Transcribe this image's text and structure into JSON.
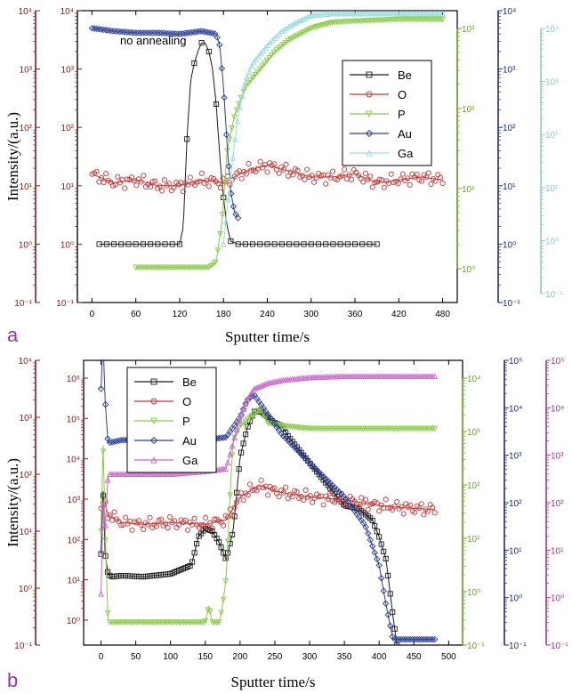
{
  "colors": {
    "Be": "#1a1a1a",
    "O": "#cc3333",
    "P": "#88cc44",
    "Au": "#2b3f99",
    "Ga": "#99dddd",
    "Ga_b": "#cc66cc",
    "axis_red": "#8b1a1a",
    "axis_green": "#66aa22",
    "axis_navy": "#1b2a7a",
    "axis_cyan": "#88cccc",
    "axis_magenta": "#aa3388",
    "panel_letter": "#9933aa"
  },
  "chart_data": [
    {
      "type": "line",
      "panel": "a",
      "annotation": "no annealing",
      "xlabel": "Sputter time/s",
      "ylabel": "Intensity/(a.u.)",
      "xlim": [
        -20,
        500
      ],
      "xticks": [
        "0",
        "60",
        "120",
        "180",
        "240",
        "300",
        "360",
        "420",
        "480"
      ],
      "legend": [
        "Be",
        "O",
        "P",
        "Au",
        "Ga"
      ],
      "legend_position": "upper-right",
      "axes": [
        {
          "side": "left-outer",
          "color_key": "axis_red",
          "scale": "log",
          "ticks": [
            "10⁻¹",
            "10⁰",
            "10¹",
            "10²",
            "10³",
            "10⁴"
          ]
        },
        {
          "side": "left-inner",
          "color_key": "axis_red",
          "scale": "log",
          "ticks": [
            "10⁻¹",
            "10⁰",
            "10¹",
            "10²",
            "10³",
            "10⁴"
          ]
        },
        {
          "side": "right-1",
          "color_key": "axis_green",
          "scale": "log",
          "ticks": [
            "10⁰",
            "10¹",
            "10²",
            "10³"
          ]
        },
        {
          "side": "right-2",
          "color_key": "axis_navy",
          "scale": "log",
          "ticks": [
            "10⁻¹",
            "10⁰",
            "10¹",
            "10²",
            "10³",
            "10⁴"
          ]
        },
        {
          "side": "right-3",
          "color_key": "axis_cyan",
          "scale": "log",
          "ticks": [
            "10⁻¹",
            "10⁰",
            "10¹",
            "10²",
            "10³",
            "10⁴"
          ]
        }
      ],
      "series": [
        {
          "name": "Be",
          "x": [
            10,
            60,
            110,
            120,
            125,
            130,
            135,
            140,
            145,
            150,
            155,
            160,
            165,
            170,
            175,
            180,
            185,
            190,
            200,
            240,
            300,
            360,
            390
          ],
          "y": [
            0,
            0,
            0,
            0,
            0.3,
            1.8,
            2.8,
            3.1,
            3.3,
            3.45,
            3.45,
            3.3,
            3.0,
            2.4,
            1.5,
            0.8,
            0.3,
            0.05,
            0,
            0,
            0,
            0,
            0
          ]
        },
        {
          "name": "O",
          "x": [
            0,
            30,
            60,
            90,
            120,
            150,
            180,
            210,
            240,
            270,
            300,
            330,
            360,
            390,
            420,
            450,
            480
          ],
          "y": [
            1.2,
            1.05,
            1.1,
            1.0,
            1.0,
            1.1,
            1.05,
            1.25,
            1.35,
            1.25,
            1.15,
            1.15,
            1.2,
            1.05,
            1.1,
            1.15,
            1.1
          ]
        },
        {
          "name": "P",
          "x": [
            60,
            80,
            100,
            120,
            140,
            160,
            170,
            178,
            185,
            195,
            210,
            230,
            250,
            270,
            300,
            330,
            360,
            420,
            480
          ],
          "y": [
            -0.4,
            -0.4,
            -0.4,
            -0.4,
            -0.4,
            -0.4,
            -0.3,
            0.4,
            1.6,
            2.2,
            2.7,
            3.0,
            3.3,
            3.5,
            3.7,
            3.8,
            3.82,
            3.85,
            3.85
          ]
        },
        {
          "name": "Au",
          "x": [
            0,
            30,
            60,
            90,
            120,
            150,
            170,
            175,
            180,
            185,
            190,
            195,
            200
          ],
          "y": [
            3.7,
            3.65,
            3.62,
            3.62,
            3.6,
            3.65,
            3.6,
            3.4,
            2.7,
            1.7,
            0.9,
            0.55,
            0.45
          ]
        },
        {
          "name": "Ga",
          "x": [
            180,
            190,
            200,
            210,
            220,
            240,
            260,
            280,
            300,
            330,
            360,
            420,
            480
          ],
          "y": [
            0,
            1.2,
            2.2,
            2.8,
            3.1,
            3.4,
            3.65,
            3.8,
            3.92,
            3.95,
            3.95,
            3.95,
            3.95
          ]
        }
      ]
    },
    {
      "type": "line",
      "panel": "b",
      "xlabel": "Sputter time/s",
      "ylabel": "Intensity/(a.u.)",
      "xlim": [
        -25,
        520
      ],
      "xticks": [
        "0",
        "50",
        "100",
        "150",
        "200",
        "250",
        "300",
        "350",
        "400",
        "450",
        "500"
      ],
      "legend": [
        "Be",
        "O",
        "P",
        "Au",
        "Ga"
      ],
      "legend_position": "upper-left",
      "axes": [
        {
          "side": "left-outer",
          "color_key": "axis_red",
          "scale": "log",
          "ticks": [
            "10⁻¹",
            "10⁰",
            "10¹",
            "10²",
            "10³",
            "10⁴"
          ]
        },
        {
          "side": "left-inner",
          "color_key": "axis_red",
          "scale": "log",
          "ticks": [
            "10⁰",
            "10¹",
            "10²",
            "10³",
            "10⁴",
            "10⁵",
            "10⁶"
          ]
        },
        {
          "side": "right-1",
          "color_key": "axis_green",
          "scale": "log",
          "ticks": [
            "10⁻¹",
            "10⁰",
            "10¹",
            "10²",
            "10³",
            "10⁴"
          ]
        },
        {
          "side": "right-2",
          "color_key": "axis_navy",
          "scale": "log",
          "ticks": [
            "10⁻¹",
            "10⁰",
            "10¹",
            "10²",
            "10³",
            "10⁴",
            "10⁵"
          ]
        },
        {
          "side": "right-3",
          "color_key": "axis_magenta",
          "scale": "log",
          "ticks": [
            "10⁻¹",
            "10⁰",
            "10¹",
            "10²",
            "10³",
            "10⁴",
            "10⁵"
          ]
        }
      ],
      "series": [
        {
          "name": "Be",
          "x": [
            0,
            3,
            6,
            10,
            15,
            30,
            60,
            100,
            130,
            140,
            150,
            160,
            170,
            180,
            190,
            200,
            210,
            220,
            230,
            240,
            250,
            260,
            270,
            300,
            330,
            350,
            370,
            390,
            400,
            410,
            420,
            430,
            450,
            480
          ],
          "y": [
            0.6,
            1.7,
            0.6,
            0.25,
            0.2,
            0.22,
            0.2,
            0.25,
            0.4,
            0.9,
            1.05,
            1.0,
            0.8,
            0.5,
            1.0,
            2.3,
            2.8,
            3.1,
            3.1,
            3.0,
            2.9,
            2.85,
            2.65,
            2.2,
            1.75,
            1.45,
            1.4,
            1.2,
            0.9,
            0.5,
            -0.5,
            -1.4,
            -1.4,
            -1.4
          ]
        },
        {
          "name": "O",
          "x": [
            0,
            5,
            10,
            30,
            60,
            100,
            150,
            180,
            200,
            220,
            230,
            250,
            300,
            350,
            400,
            450,
            480
          ],
          "y": [
            1.4,
            1.5,
            1.3,
            1.15,
            1.12,
            1.15,
            1.12,
            1.2,
            1.6,
            1.75,
            1.8,
            1.7,
            1.6,
            1.55,
            1.45,
            1.4,
            1.38
          ]
        },
        {
          "name": "P",
          "x": [
            0,
            3,
            6,
            10,
            30,
            60,
            100,
            150,
            155,
            160,
            170,
            175,
            180,
            185,
            190,
            200,
            210,
            220,
            230,
            240,
            260,
            300,
            350,
            400,
            450,
            480
          ],
          "y": [
            1.0,
            2.5,
            1.0,
            -0.6,
            -0.6,
            -0.6,
            -0.6,
            -0.6,
            -0.3,
            -0.6,
            -0.6,
            -0.3,
            0.2,
            1.5,
            2.6,
            2.85,
            2.95,
            3.05,
            3.15,
            2.9,
            2.85,
            2.8,
            2.8,
            2.8,
            2.8,
            2.8
          ]
        },
        {
          "name": "Au",
          "x": [
            0,
            3,
            6,
            10,
            30,
            60,
            100,
            150,
            180,
            200,
            210,
            220,
            240,
            260,
            300,
            350,
            380,
            400,
            410,
            420,
            450,
            480
          ],
          "y": [
            3.5,
            4.3,
            3.3,
            2.55,
            2.6,
            2.6,
            2.6,
            2.6,
            2.65,
            3.0,
            3.3,
            3.4,
            3.05,
            2.7,
            2.2,
            1.6,
            1.1,
            0.4,
            -0.3,
            -0.9,
            -0.9,
            -0.9
          ]
        },
        {
          "name": "Ga",
          "x": [
            0,
            3,
            6,
            10,
            30,
            60,
            100,
            150,
            180,
            200,
            210,
            220,
            230,
            240,
            260,
            300,
            350,
            400,
            450,
            480
          ],
          "y": [
            -0.1,
            1.5,
            1.0,
            2.0,
            2.0,
            2.0,
            2.0,
            2.05,
            2.1,
            3.0,
            3.3,
            3.5,
            3.55,
            3.6,
            3.65,
            3.7,
            3.72,
            3.72,
            3.72,
            3.72
          ]
        }
      ]
    }
  ]
}
